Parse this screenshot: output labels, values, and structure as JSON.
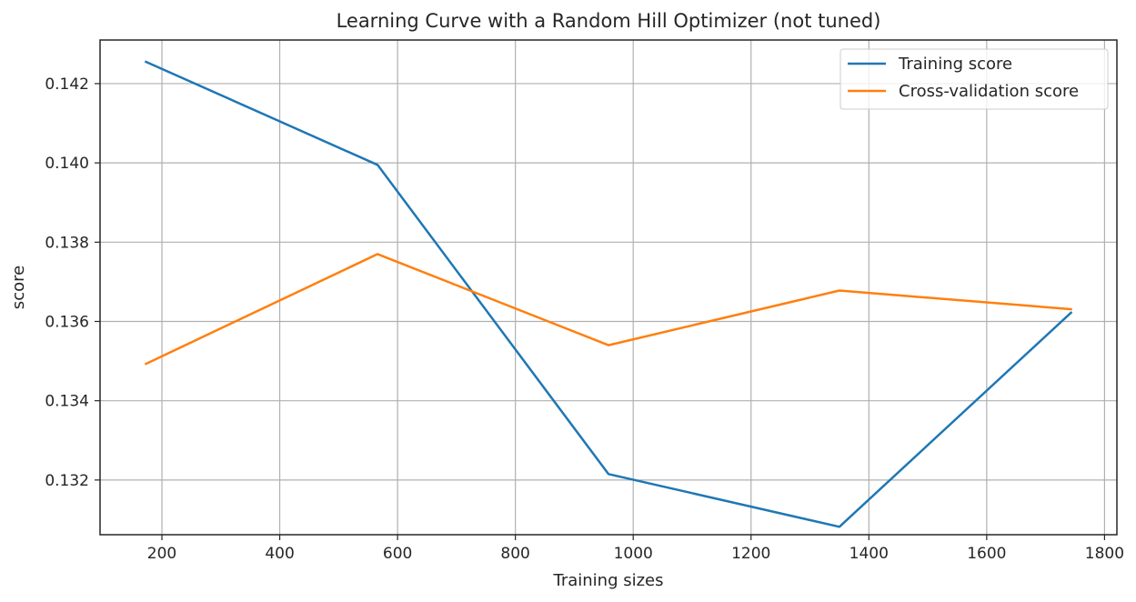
{
  "chart_data": {
    "type": "line",
    "title": "Learning Curve with a Random Hill Optimizer (not tuned)",
    "xlabel": "Training sizes",
    "ylabel": "score",
    "x": [
      173,
      566,
      958,
      1350,
      1743
    ],
    "series": [
      {
        "name": "Training score",
        "color": "#1f77b4",
        "values": [
          0.14255,
          0.13995,
          0.13215,
          0.13082,
          0.13622
        ]
      },
      {
        "name": "Cross-validation score",
        "color": "#ff7f0e",
        "values": [
          0.13493,
          0.1377,
          0.1354,
          0.13678,
          0.13631
        ]
      }
    ],
    "xlim": [
      95,
      1821
    ],
    "ylim": [
      0.13062,
      0.1431
    ],
    "xticks": [
      200,
      400,
      600,
      800,
      1000,
      1200,
      1400,
      1600,
      1800
    ],
    "yticks": [
      0.132,
      0.134,
      0.136,
      0.138,
      0.14,
      0.142
    ],
    "ytick_labels": [
      "0.132",
      "0.134",
      "0.136",
      "0.138",
      "0.140",
      "0.142"
    ],
    "grid": true,
    "legend_position": "upper right"
  }
}
